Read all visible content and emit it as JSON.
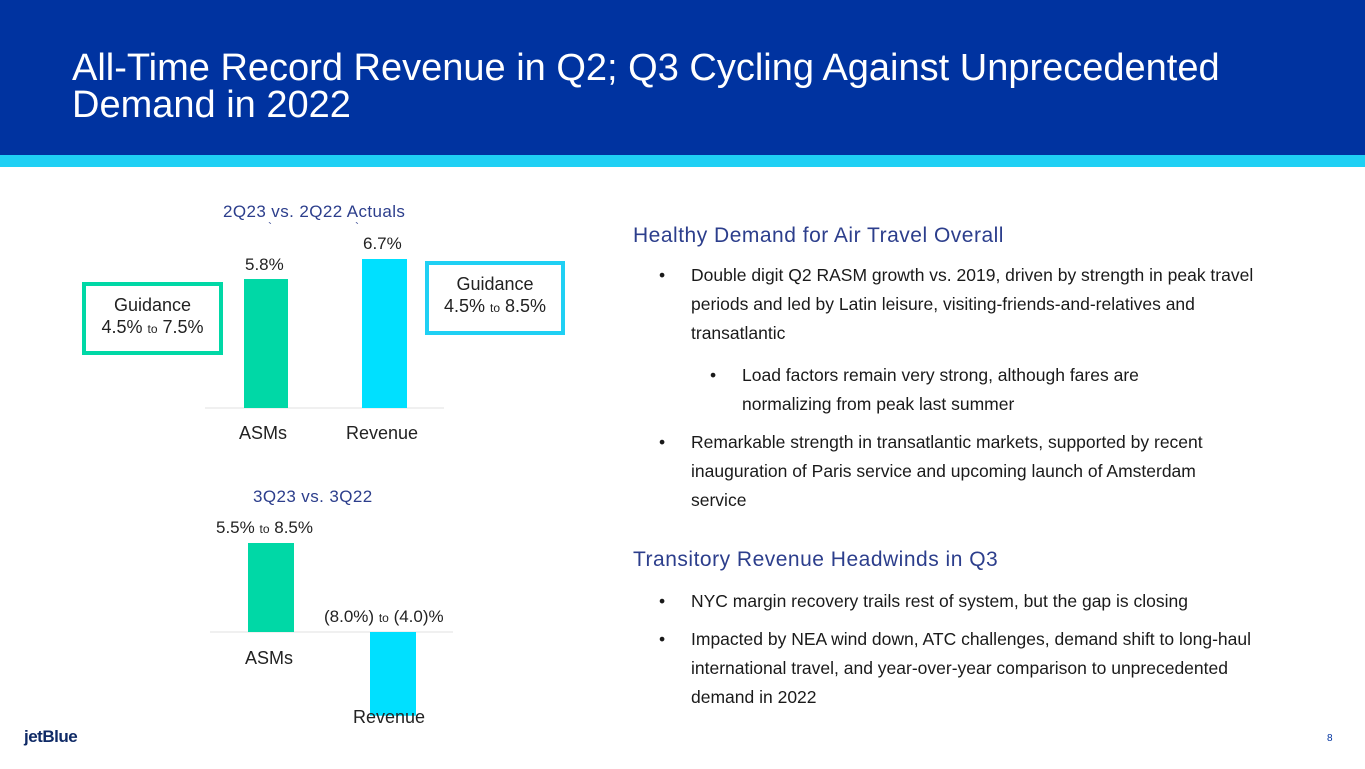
{
  "slide": {
    "title": "All-Time Record Revenue in Q2; Q3 Cycling Against Unprecedented Demand in 2022",
    "page_number": "8",
    "logo_text": "jetBlue"
  },
  "colors": {
    "header": "#0033a0",
    "accent": "#1fd0f4",
    "asm_bar": "#00d8a6",
    "revenue_bar": "#00e0ff"
  },
  "chart_data": [
    {
      "type": "bar",
      "title": "2Q23 vs. 2Q22 Actuals",
      "categories": [
        "ASMs",
        "Revenue"
      ],
      "values": [
        5.8,
        6.7
      ],
      "value_labels": [
        "5.8%",
        "6.7%"
      ],
      "unit": "%",
      "guidance": [
        {
          "label": "Guidance",
          "low": "4.5%",
          "sep": "to",
          "high": "7.5%"
        },
        {
          "label": "Guidance",
          "low": "4.5%",
          "sep": "to",
          "high": "8.5%"
        }
      ]
    },
    {
      "type": "bar",
      "title": "3Q23 vs. 3Q22",
      "categories": [
        "ASMs",
        "Revenue"
      ],
      "ranges": [
        [
          5.5,
          8.5
        ],
        [
          -8.0,
          -4.0
        ]
      ],
      "range_labels": [
        {
          "low": "5.5%",
          "sep": "to",
          "high": "8.5%"
        },
        {
          "low": "(8.0%)",
          "sep": "to",
          "high": "(4.0)%"
        }
      ],
      "unit": "%"
    }
  ],
  "sections": [
    {
      "heading": "Healthy Demand for Air Travel Overall",
      "bullets": [
        "Double digit Q2 RASM growth vs. 2019, driven by strength in peak travel periods and led by Latin leisure, visiting-friends-and-relatives and transatlantic",
        "Load factors remain very strong, although fares are normalizing from peak last summer",
        "Remarkable strength in transatlantic markets, supported by recent inauguration of Paris service and upcoming launch of Amsterdam service"
      ]
    },
    {
      "heading": "Transitory Revenue Headwinds in Q3",
      "bullets": [
        "NYC margin recovery trails rest of system, but the gap is closing",
        "Impacted by NEA wind down, ATC challenges, demand shift to long-haul international travel, and year-over-year comparison to unprecedented demand in 2022"
      ]
    }
  ],
  "bullet_char": "•"
}
